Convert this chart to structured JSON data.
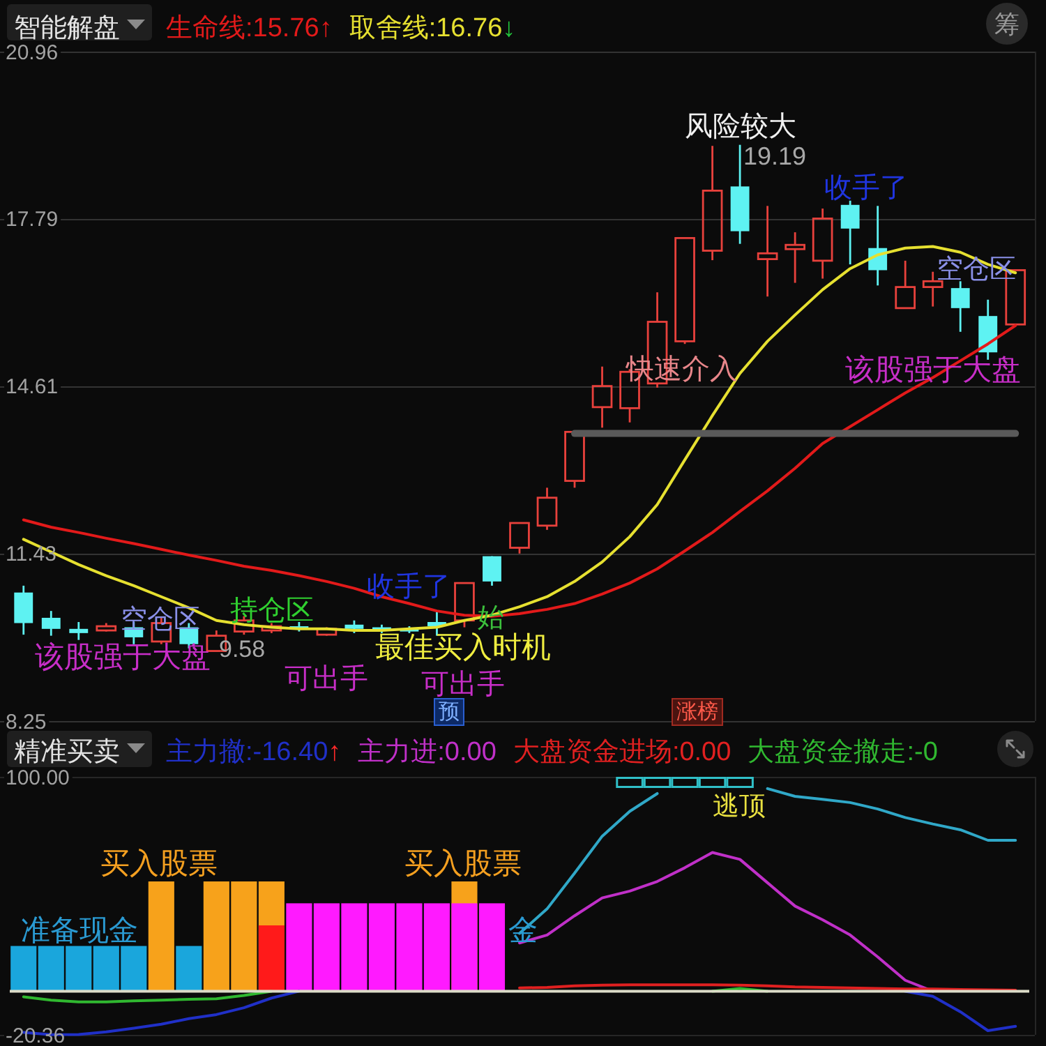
{
  "chart_data": [
    {
      "type": "candlestick",
      "title": "智能解盘",
      "legend": "top",
      "grid": "y",
      "tick_labels": "y",
      "ylim": [
        8.25,
        20.96
      ],
      "yticks": [
        20.96,
        17.79,
        14.61,
        11.43,
        8.25
      ],
      "categories": [
        null,
        null,
        null,
        null,
        null,
        null,
        null,
        null,
        null,
        null,
        null,
        null,
        null,
        null,
        null,
        null,
        null,
        null,
        null,
        null,
        null,
        null,
        null,
        null,
        null,
        null,
        null,
        null,
        null,
        null,
        null,
        null,
        null,
        null,
        null,
        null,
        null
      ],
      "ohlc": [
        [
          10.69,
          10.82,
          9.89,
          10.11
        ],
        [
          10.21,
          10.34,
          9.87,
          10.0
        ],
        [
          10.0,
          10.13,
          9.79,
          9.92
        ],
        [
          9.97,
          10.11,
          9.95,
          10.05
        ],
        [
          10.03,
          10.13,
          9.71,
          9.84
        ],
        [
          9.76,
          10.21,
          9.71,
          10.11
        ],
        [
          10.03,
          10.11,
          9.63,
          9.71
        ],
        [
          9.58,
          9.97,
          9.58,
          9.87
        ],
        [
          9.95,
          10.24,
          9.89,
          10.16
        ],
        [
          9.97,
          10.11,
          9.92,
          10.05
        ],
        [
          10.05,
          10.13,
          9.95,
          10.0
        ],
        [
          9.89,
          10.03,
          9.87,
          10.0
        ],
        [
          10.08,
          10.16,
          9.92,
          10.0
        ],
        [
          10.03,
          10.08,
          9.92,
          9.97
        ],
        [
          10.0,
          10.05,
          9.92,
          9.95
        ],
        [
          10.13,
          10.34,
          9.87,
          10.05
        ],
        [
          10.16,
          10.87,
          10.03,
          10.87
        ],
        [
          11.38,
          11.38,
          10.82,
          10.9
        ],
        [
          11.54,
          12.01,
          11.43,
          12.01
        ],
        [
          11.96,
          12.68,
          11.88,
          12.49
        ],
        [
          12.81,
          13.74,
          12.68,
          13.74
        ],
        [
          14.21,
          14.98,
          13.82,
          14.61
        ],
        [
          14.19,
          14.93,
          13.92,
          14.88
        ],
        [
          14.66,
          16.39,
          14.58,
          15.83
        ],
        [
          15.46,
          17.42,
          15.41,
          17.42
        ],
        [
          17.18,
          19.17,
          17.0,
          18.32
        ],
        [
          18.4,
          19.19,
          17.31,
          17.55
        ],
        [
          17.02,
          18.03,
          16.31,
          17.13
        ],
        [
          17.21,
          17.53,
          16.57,
          17.29
        ],
        [
          16.99,
          17.98,
          16.65,
          17.79
        ],
        [
          18.05,
          18.13,
          16.92,
          17.6
        ],
        [
          17.23,
          18.03,
          16.52,
          16.81
        ],
        [
          16.09,
          16.99,
          16.09,
          16.49
        ],
        [
          16.49,
          16.78,
          16.12,
          16.6
        ],
        [
          16.47,
          16.6,
          15.64,
          16.09
        ],
        [
          15.94,
          16.25,
          15.11,
          15.25
        ],
        [
          15.78,
          16.81,
          15.78,
          16.81
        ]
      ],
      "colors": [
        "#5ef2f2",
        "#5ef2f2",
        "#5ef2f2",
        "#e8413c",
        "#5ef2f2",
        "#e8413c",
        "#5ef2f2",
        "#e8413c",
        "#e8413c",
        "#e8413c",
        "#5ef2f2",
        "#e8413c",
        "#5ef2f2",
        "#5ef2f2",
        "#5ef2f2",
        "#5ef2f2",
        "#e8413c",
        "#5ef2f2",
        "#e8413c",
        "#e8413c",
        "#e8413c",
        "#e8413c",
        "#e8413c",
        "#e8413c",
        "#e8413c",
        "#e8413c",
        "#5ef2f2",
        "#e8413c",
        "#e8413c",
        "#e8413c",
        "#5ef2f2",
        "#5ef2f2",
        "#e8413c",
        "#e8413c",
        "#5ef2f2",
        "#5ef2f2",
        "#e8413c"
      ],
      "series": [
        {
          "name": "生命线:15.76↑",
          "type": "line",
          "color": "#e21a1a",
          "values": [
            12.07,
            11.93,
            11.83,
            11.72,
            11.62,
            11.51,
            11.4,
            11.3,
            11.19,
            11.11,
            11.01,
            10.9,
            10.77,
            10.61,
            10.48,
            10.34,
            10.26,
            10.24,
            10.29,
            10.37,
            10.48,
            10.66,
            10.87,
            11.14,
            11.48,
            11.83,
            12.23,
            12.62,
            13.05,
            13.52,
            13.84,
            14.16,
            14.48,
            14.77,
            15.09,
            15.41,
            15.76
          ]
        },
        {
          "name": "取舍线:16.76↓",
          "type": "line",
          "color": "#e6e030",
          "values": [
            11.7,
            11.46,
            11.22,
            11.01,
            10.82,
            10.61,
            10.4,
            10.16,
            10.08,
            10.03,
            10.0,
            10.0,
            9.97,
            9.97,
            10.0,
            10.03,
            10.16,
            10.26,
            10.42,
            10.61,
            10.9,
            11.27,
            11.75,
            12.36,
            13.21,
            14.05,
            14.85,
            15.46,
            15.96,
            16.44,
            16.84,
            17.1,
            17.23,
            17.26,
            17.15,
            16.92,
            16.76
          ]
        },
        {
          "type": "line",
          "color": "#5a5a5a",
          "values": [
            null,
            null,
            null,
            null,
            null,
            null,
            null,
            null,
            null,
            null,
            null,
            null,
            null,
            null,
            null,
            null,
            null,
            null,
            null,
            null,
            13.71,
            13.71,
            13.71,
            13.71,
            13.71,
            13.71,
            13.71,
            13.71,
            13.71,
            13.71,
            13.71,
            13.71,
            13.71,
            13.71,
            13.71,
            13.71,
            13.71
          ]
        }
      ],
      "annotations": [
        "筹",
        "风险较大",
        "19.19",
        "收手了",
        "空仓区",
        "该股强于大盘",
        "快速介入",
        "收手了",
        "始",
        "最佳买入时机",
        "可出手",
        "可出手",
        "9.58",
        "持仓区",
        "空仓区",
        "该股强于大盘",
        "预",
        "涨榜"
      ]
    },
    {
      "type": "bar",
      "title": "精准买卖",
      "legend": "top",
      "tick_labels": "y",
      "ylim": [
        -20.36,
        100
      ],
      "yticks": [
        {
          "value": 100,
          "label": "100.00"
        },
        {
          "value": -20.36,
          "label": "-20.36"
        }
      ],
      "categories": [
        null,
        null,
        null,
        null,
        null,
        null,
        null,
        null,
        null,
        null,
        null,
        null,
        null,
        null,
        null,
        null,
        null,
        null,
        null,
        null,
        null,
        null,
        null,
        null,
        null,
        null,
        null,
        null,
        null,
        null,
        null,
        null,
        null,
        null,
        null,
        null,
        null
      ],
      "series": [
        {
          "type": "bar",
          "color": "#1aa6dc",
          "values": [
            21.1,
            21.1,
            21.1,
            21.1,
            21.1,
            null,
            21.1,
            null,
            null,
            null,
            null,
            null,
            null,
            null,
            null,
            null,
            null,
            null,
            null,
            null,
            null,
            null,
            null,
            null,
            null,
            null,
            null,
            null,
            null,
            null,
            null,
            null,
            null,
            null,
            null,
            null,
            null
          ]
        },
        {
          "type": "bar",
          "color": "#f7a21b",
          "values": [
            null,
            null,
            null,
            null,
            null,
            51.2,
            null,
            51.2,
            51.2,
            51.2,
            null,
            null,
            null,
            null,
            null,
            null,
            51.2,
            null,
            null,
            null,
            null,
            null,
            null,
            null,
            null,
            null,
            null,
            null,
            null,
            null,
            null,
            null,
            null,
            null,
            null,
            null,
            null
          ]
        },
        {
          "type": "bar",
          "color": "#ff1a1a",
          "values": [
            null,
            null,
            null,
            null,
            null,
            null,
            null,
            null,
            null,
            30.7,
            null,
            null,
            null,
            null,
            null,
            null,
            null,
            null,
            null,
            null,
            null,
            null,
            null,
            null,
            null,
            null,
            null,
            null,
            null,
            null,
            null,
            null,
            null,
            null,
            null,
            null,
            null
          ]
        },
        {
          "type": "bar",
          "color": "#ff1aff",
          "values": [
            null,
            null,
            null,
            null,
            null,
            null,
            null,
            null,
            null,
            null,
            41.0,
            41.0,
            41.0,
            41.0,
            41.0,
            41.0,
            41.0,
            41.0,
            null,
            null,
            null,
            null,
            null,
            null,
            null,
            null,
            null,
            null,
            null,
            null,
            null,
            null,
            null,
            null,
            null,
            null,
            null
          ]
        },
        {
          "name": "主力撤:-16.40↑",
          "type": "line",
          "color": "#2030c8",
          "values": [
            -19.2,
            -20.3,
            -20.2,
            -19.0,
            -17.3,
            -15.4,
            -12.8,
            -10.9,
            -7.7,
            -3.2,
            0,
            null,
            null,
            null,
            null,
            null,
            null,
            null,
            null,
            null,
            null,
            null,
            null,
            null,
            null,
            null,
            null,
            null,
            null,
            null,
            null,
            null,
            0,
            -2.4,
            -9.6,
            -18.4,
            -16.4
          ]
        },
        {
          "name": "主力进:0.00",
          "type": "line",
          "color": "#c030c8",
          "values": [
            null,
            null,
            null,
            null,
            null,
            null,
            null,
            null,
            null,
            null,
            null,
            null,
            null,
            null,
            null,
            null,
            null,
            null,
            22.5,
            26.2,
            35.2,
            43.5,
            46.7,
            51.2,
            57.6,
            64.7,
            61.5,
            50.6,
            39.7,
            33.3,
            26.2,
            16.0,
            5.1,
            0,
            null,
            null,
            null
          ]
        },
        {
          "name": "大盘资金进场:0.00",
          "type": "line",
          "color": "#e02020",
          "values": [
            null,
            null,
            null,
            null,
            null,
            null,
            null,
            null,
            null,
            null,
            null,
            null,
            null,
            null,
            null,
            null,
            null,
            null,
            1.5,
            1.8,
            2.5,
            2.8,
            3.0,
            3.0,
            3.0,
            3.0,
            2.8,
            2.5,
            2.0,
            1.8,
            1.5,
            1.3,
            1.0,
            1.0,
            0.8,
            0.6,
            0.5
          ]
        },
        {
          "name": "大盘资金撤走:-0",
          "type": "line",
          "color": "#30b830",
          "values": [
            -2.6,
            -4.2,
            -5.0,
            -5.0,
            -4.5,
            -4.2,
            -3.8,
            -3.5,
            -2.0,
            0,
            null,
            null,
            null,
            null,
            null,
            null,
            null,
            null,
            null,
            null,
            null,
            null,
            null,
            null,
            null,
            0,
            1.3,
            0,
            null,
            null,
            null,
            null,
            null,
            null,
            null,
            null,
            null
          ]
        },
        {
          "type": "line",
          "color": "#30a8c8",
          "values": [
            null,
            null,
            null,
            null,
            null,
            null,
            null,
            null,
            null,
            null,
            null,
            null,
            null,
            null,
            null,
            null,
            null,
            null,
            27.0,
            38.4,
            55.1,
            72.3,
            83.9,
            92.2,
            null,
            null,
            null,
            94.5,
            90.9,
            89.5,
            88.0,
            85.0,
            81.0,
            78.0,
            75.3,
            70.4,
            70.4
          ]
        },
        {
          "type": "bar",
          "color": "#30c0c8",
          "base": [
            null,
            null,
            null,
            null,
            null,
            null,
            null,
            null,
            null,
            null,
            null,
            null,
            null,
            null,
            null,
            null,
            null,
            null,
            null,
            null,
            null,
            null,
            94.8,
            94.8,
            94.8,
            94.8,
            94.8,
            null,
            null,
            null,
            null,
            null,
            null,
            null,
            null,
            null,
            null
          ],
          "values": [
            null,
            null,
            null,
            null,
            null,
            null,
            null,
            null,
            null,
            null,
            null,
            null,
            null,
            null,
            null,
            null,
            null,
            null,
            null,
            null,
            null,
            null,
            5.2,
            5.2,
            5.2,
            5.2,
            5.2,
            null,
            null,
            null,
            null,
            null,
            null,
            null,
            null,
            null,
            null
          ]
        }
      ],
      "ref_lines": [
        {
          "axis": "y",
          "value": 0,
          "color": "#dcdcc8"
        }
      ],
      "annotations": [
        "买入股票",
        "买入股票",
        "准备现金",
        "金",
        "逃顶"
      ]
    }
  ]
}
